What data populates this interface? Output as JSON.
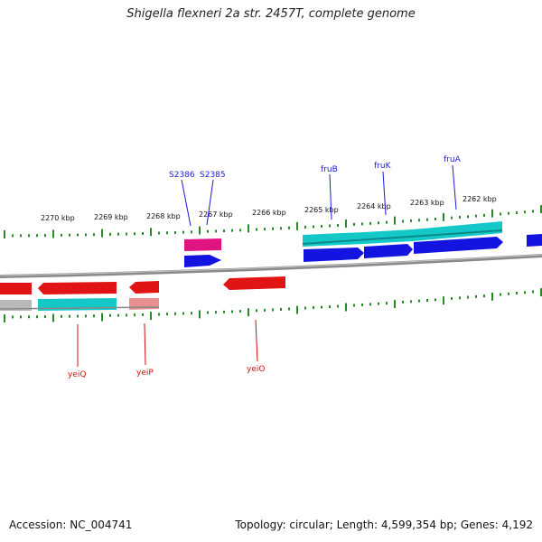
{
  "title": "Shigella flexneri 2a str. 2457T, complete genome",
  "accession": "Accession: NC_004741",
  "summary": "Topology: circular; Length: 4,599,354 bp; Genes: 4,192",
  "scale_labels": [
    "2270 kbp",
    "2269 kbp",
    "2268 kbp",
    "2267 kbp",
    "2266 kbp",
    "2265 kbp",
    "2264 kbp",
    "2263 kbp",
    "2262 kbp"
  ],
  "genes_forward": [
    "S2386",
    "S2385",
    "fruB",
    "fruK",
    "fruA"
  ],
  "genes_reverse": [
    "yeiQ",
    "yeiP",
    "yeiO"
  ],
  "colors": {
    "backbone": "#8a8a8a",
    "ticks": "#2a8a2a",
    "cds_forward": "#1414e0",
    "cds_reverse": "#e01414",
    "cog_cyan": "#14c8c8",
    "cog_magenta": "#e01480",
    "cog_grey": "#b8b8b8",
    "cog_pink": "#e89090",
    "label_forward": "#1a1adc",
    "label_reverse": "#d01010"
  }
}
